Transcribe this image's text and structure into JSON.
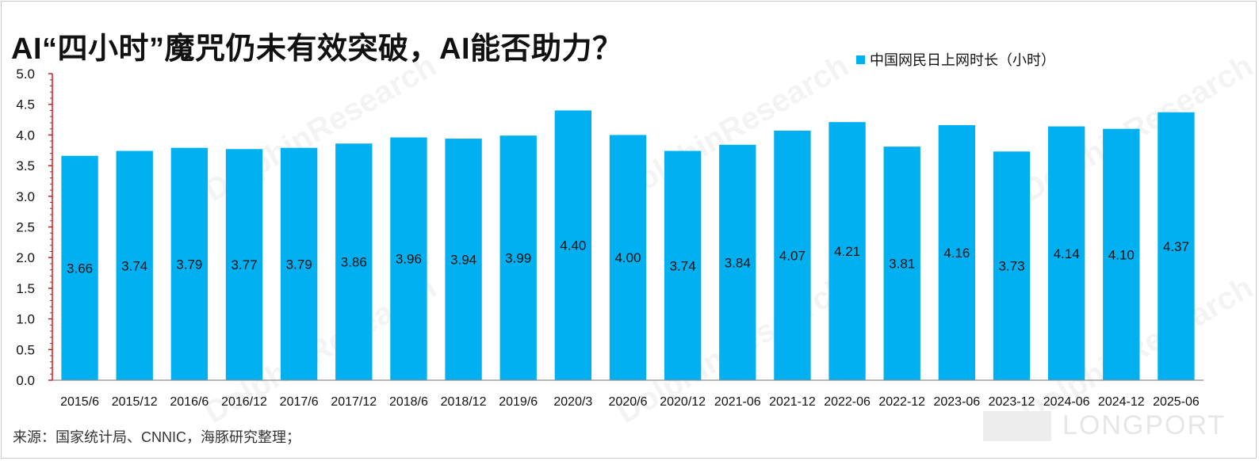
{
  "title": "AI“四小时”魔咒仍未有效突破，AI能否助力？",
  "legend": {
    "label": "中国网民日上网时长（小时）",
    "color": "#00B0F0"
  },
  "source": "来源：国家统计局、CNNIC，海豚研究整理；",
  "watermark_text": "DolphinResearch",
  "logo_text": "LONGPORT",
  "chart_data": {
    "type": "bar",
    "title": "AI“四小时”魔咒仍未有效突破，AI能否助力？",
    "xlabel": "",
    "ylabel": "",
    "ylim": [
      0,
      5.0
    ],
    "yticks": [
      "0.0",
      "0.5",
      "1.0",
      "1.5",
      "2.0",
      "2.5",
      "3.0",
      "3.5",
      "4.0",
      "4.5",
      "5.0"
    ],
    "grid": false,
    "legend_position": "top-right",
    "categories": [
      "2015/6",
      "2015/12",
      "2016/6",
      "2016/12",
      "2017/6",
      "2017/12",
      "2018/6",
      "2018/12",
      "2019/6",
      "2020/3",
      "2020/6",
      "2020/12",
      "2021-06",
      "2021-12",
      "2022-06",
      "2022-12",
      "2023-06",
      "2023-12",
      "2024-06",
      "2024-12",
      "2025-06"
    ],
    "series": [
      {
        "name": "中国网民日上网时长（小时）",
        "color": "#00B0F0",
        "values": [
          3.66,
          3.74,
          3.79,
          3.77,
          3.79,
          3.86,
          3.96,
          3.94,
          3.99,
          4.4,
          4.0,
          3.74,
          3.84,
          4.07,
          4.21,
          3.81,
          4.16,
          3.73,
          4.14,
          4.1,
          4.37
        ],
        "labels": [
          "3.66",
          "3.74",
          "3.79",
          "3.77",
          "3.79",
          "3.86",
          "3.96",
          "3.94",
          "3.99",
          "4.40",
          "4.00",
          "3.74",
          "3.84",
          "4.07",
          "4.21",
          "3.81",
          "4.16",
          "3.73",
          "4.14",
          "4.10",
          "4.37"
        ]
      }
    ]
  }
}
